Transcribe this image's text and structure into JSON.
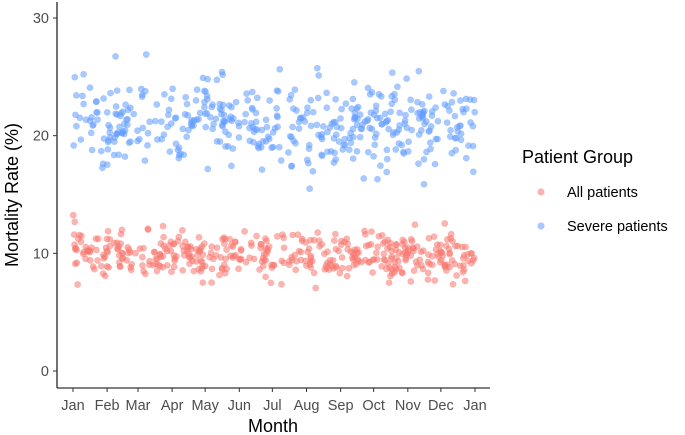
{
  "chart_data": {
    "type": "scatter",
    "title": "",
    "xlabel": "Month",
    "ylabel": "Mortality Rate (%)",
    "ylim": [
      0,
      30
    ],
    "yticks": [
      0,
      10,
      20,
      30
    ],
    "xticks": [
      "Jan",
      "Feb",
      "Mar",
      "Apr",
      "May",
      "Jun",
      "Jul",
      "Aug",
      "Sep",
      "Oct",
      "Nov",
      "Dec",
      "Jan"
    ],
    "x_unit": "day of year (1 = Jan 1)",
    "xlim": [
      1,
      366
    ],
    "grid": false,
    "legend": {
      "title": "Patient Group",
      "position": "right"
    },
    "series": [
      {
        "name": "All patients",
        "color": "#F8766D",
        "mean": 9.8,
        "sd": 0.95,
        "points_per_day": 1.2,
        "note_values": "daily points scattered around the mean between roughly 6.5 and 12.5"
      },
      {
        "name": "Severe patients",
        "color": "#619CFF",
        "mean": 20.9,
        "sd": 1.9,
        "points_per_day": 1.2,
        "note_values": "daily points scattered around the mean between roughly 15.5 and 27.5"
      }
    ]
  }
}
